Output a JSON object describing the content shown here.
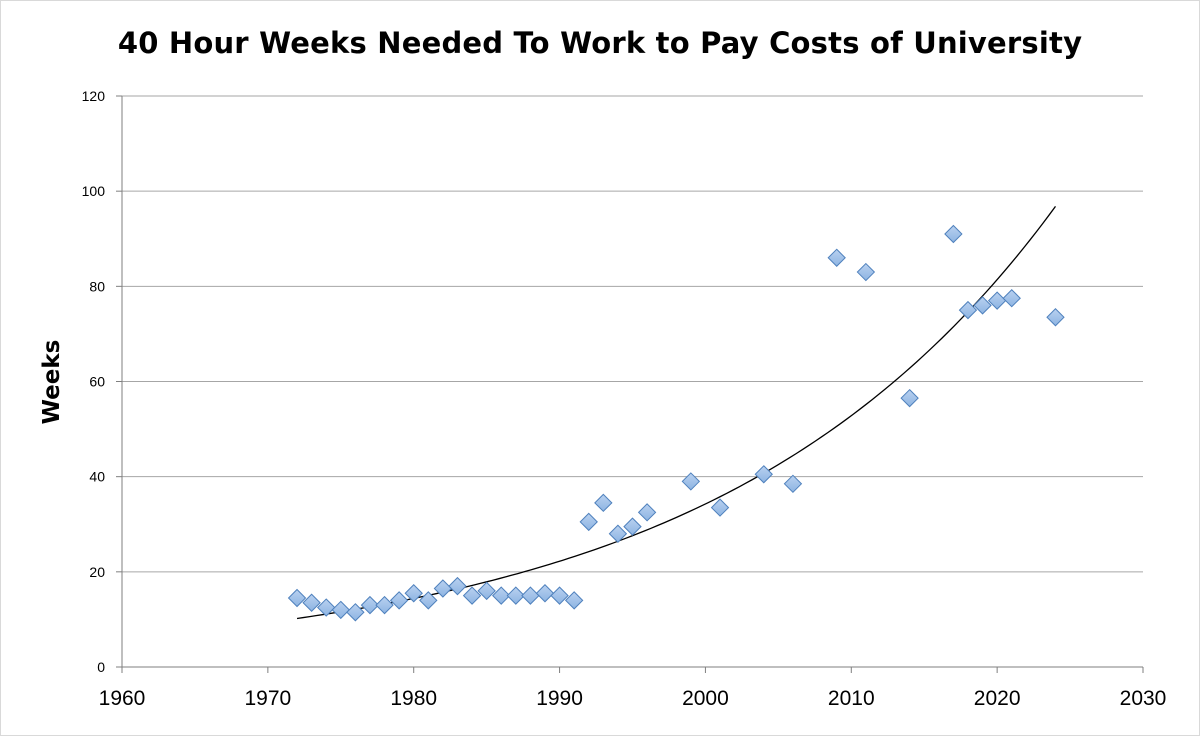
{
  "chart_data": {
    "type": "scatter",
    "title": "40 Hour Weeks Needed To Work to Pay Costs of University",
    "xlabel": "",
    "ylabel": "Weeks",
    "xlim": [
      1960,
      2030
    ],
    "ylim": [
      0,
      120
    ],
    "x_ticks": [
      1960,
      1970,
      1980,
      1990,
      2000,
      2010,
      2020,
      2030
    ],
    "y_ticks": [
      0,
      20,
      40,
      60,
      80,
      100,
      120
    ],
    "grid": "horizontal",
    "legend": "none",
    "marker": "diamond",
    "marker_color": "#8db4e2",
    "marker_edge_color": "#4f81bd",
    "series": [
      {
        "points": [
          [
            1972,
            14.5
          ],
          [
            1973,
            13.5
          ],
          [
            1974,
            12.5
          ],
          [
            1975,
            12.0
          ],
          [
            1976,
            11.5
          ],
          [
            1977,
            13.0
          ],
          [
            1978,
            13.0
          ],
          [
            1979,
            14.0
          ],
          [
            1980,
            15.5
          ],
          [
            1981,
            14.0
          ],
          [
            1982,
            16.5
          ],
          [
            1983,
            17.0
          ],
          [
            1984,
            15.0
          ],
          [
            1985,
            16.0
          ],
          [
            1986,
            15.0
          ],
          [
            1987,
            15.0
          ],
          [
            1988,
            15.0
          ],
          [
            1989,
            15.5
          ],
          [
            1990,
            15.0
          ],
          [
            1991,
            14.0
          ],
          [
            1992,
            30.5
          ],
          [
            1993,
            34.5
          ],
          [
            1994,
            28.0
          ],
          [
            1995,
            29.5
          ],
          [
            1996,
            32.5
          ],
          [
            1999,
            39.0
          ],
          [
            2001,
            33.5
          ],
          [
            2004,
            40.5
          ],
          [
            2006,
            38.5
          ],
          [
            2009,
            86.0
          ],
          [
            2011,
            83.0
          ],
          [
            2014,
            56.5
          ],
          [
            2017,
            91.0
          ],
          [
            2018,
            75.0
          ],
          [
            2019,
            76.0
          ],
          [
            2020,
            77.0
          ],
          [
            2021,
            77.5
          ],
          [
            2024,
            73.5
          ]
        ]
      }
    ],
    "trendline": {
      "type": "exponential",
      "color": "#000000",
      "x_start": 1972,
      "x_end": 2024,
      "y_start": 10.2,
      "y_end": 96.8
    }
  }
}
